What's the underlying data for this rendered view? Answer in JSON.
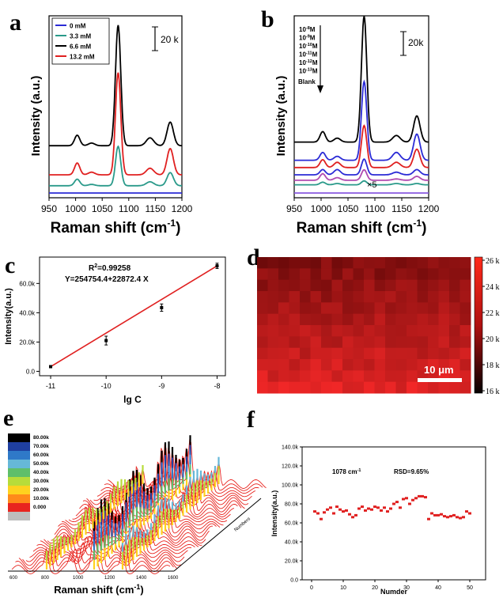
{
  "chart_data": [
    {
      "panel": "a",
      "type": "line",
      "x_ticks": [
        "950",
        "1000",
        "1050",
        "1100",
        "1150",
        "1200"
      ],
      "xlim": [
        950,
        1200
      ],
      "xlabel": "Raman shift (cm",
      "xlabel_sup": "-1",
      "xlabel_end": ")",
      "ylabel": "Intensity (a.u.)",
      "scale_bar": "20 k",
      "legend": {
        "position": "top-left",
        "entries": [
          {
            "label": "0 mM",
            "color": "#2b2bd6"
          },
          {
            "label": "3.3 mM",
            "color": "#2a9a8a"
          },
          {
            "label": "6.6 mM",
            "color": "#000000"
          },
          {
            "label": "13.2 mM",
            "color": "#e02020"
          }
        ]
      },
      "peaks_cm": [
        1003,
        1030,
        1080,
        1140,
        1178
      ],
      "series": [
        {
          "color": "#000000",
          "offset": 0.74,
          "amps": [
            0.08,
            0.02,
            0.92,
            0.06,
            0.18
          ]
        },
        {
          "color": "#e02020",
          "offset": 0.9,
          "amps": [
            0.09,
            0.02,
            0.78,
            0.05,
            0.2
          ]
        },
        {
          "color": "#2a9a8a",
          "offset": 0.96,
          "amps": [
            0.05,
            0.01,
            0.3,
            0.03,
            0.1
          ]
        },
        {
          "color": "#2b2bd6",
          "offset": 1.0,
          "amps": [
            0,
            0,
            0,
            0,
            0
          ]
        }
      ]
    },
    {
      "panel": "b",
      "type": "line",
      "x_ticks": [
        "950",
        "1000",
        "1050",
        "1100",
        "1150",
        "1200"
      ],
      "xlim": [
        950,
        1200
      ],
      "xlabel": "Raman shift (cm",
      "xlabel_sup": "-1",
      "xlabel_end": ")",
      "ylabel": "Intensity (a.u.)",
      "scale_bar": "20k",
      "multiplier": "×5",
      "concentrations": [
        {
          "base": "10",
          "exp": "-8",
          "unit": "M"
        },
        {
          "base": "10",
          "exp": "-9",
          "unit": "M"
        },
        {
          "base": "10",
          "exp": "-10",
          "unit": "M"
        },
        {
          "base": "10",
          "exp": "-11",
          "unit": "M"
        },
        {
          "base": "10",
          "exp": "-12",
          "unit": "M"
        },
        {
          "base": "10",
          "exp": "-13",
          "unit": "M"
        }
      ],
      "blank_label": "Blank",
      "peaks_cm": [
        1003,
        1030,
        1080,
        1140,
        1178
      ],
      "series": [
        {
          "color": "#000000",
          "offset": 0.72,
          "amps": [
            0.08,
            0.03,
            0.96,
            0.05,
            0.2
          ]
        },
        {
          "color": "#2b2bd6",
          "offset": 0.82,
          "amps": [
            0.06,
            0.03,
            0.6,
            0.06,
            0.2
          ]
        },
        {
          "color": "#e02020",
          "offset": 0.86,
          "amps": [
            0.06,
            0.04,
            0.32,
            0.04,
            0.14
          ]
        },
        {
          "color": "#2b2bd6",
          "offset": 0.9,
          "amps": [
            0.04,
            0.04,
            0.12,
            0.02,
            0.04
          ]
        },
        {
          "color": "#b04ab0",
          "offset": 0.93,
          "amps": [
            0.05,
            0.02,
            0.08,
            0.01,
            0.03
          ]
        },
        {
          "color": "#2a9a8a",
          "offset": 0.955,
          "amps": [
            0.02,
            0.01,
            0.03,
            0.01,
            0.01
          ]
        },
        {
          "color": "#8a5ae0",
          "offset": 1.0,
          "amps": [
            0,
            0,
            0,
            0,
            0
          ]
        }
      ]
    },
    {
      "panel": "c",
      "type": "scatter",
      "x": [
        -11,
        -10,
        -9,
        -8
      ],
      "y": [
        3200,
        21000,
        43500,
        72000
      ],
      "yerr": [
        600,
        3000,
        2500,
        1800
      ],
      "fit": {
        "label_r2": "R",
        "label_r2_sup": "2",
        "r2_value": "=0.99258",
        "equation": "Y=254754.4+22872.4 X",
        "color": "#e02020"
      },
      "x_ticks": [
        "-11",
        "-10",
        "-9",
        "-8"
      ],
      "y_ticks": [
        "0.0",
        "20.0k",
        "40.0k",
        "60.0k"
      ],
      "xlim": [
        -11.2,
        -7.85
      ],
      "ylim": [
        -3000,
        78000
      ],
      "xlabel": "lg C",
      "ylabel": "Intensity(a.u.)"
    },
    {
      "panel": "d",
      "type": "heatmap",
      "rows": 12,
      "cols": 20,
      "colorbar_ticks": [
        "26 k",
        "24 k",
        "22 k",
        "20 k",
        "18 k",
        "16 k"
      ],
      "scale_bar": "10 μm"
    },
    {
      "panel": "e",
      "type": "waterfall",
      "legend_values": [
        "80.00k",
        "70.00k",
        "60.00k",
        "50.00k",
        "40.00k",
        "30.00k",
        "20.00k",
        "10.00k",
        "0.000"
      ],
      "legend_colors": [
        "#000000",
        "#1f3f9f",
        "#2f79c8",
        "#66b8d8",
        "#5fbf6a",
        "#b8dc3a",
        "#ffd21f",
        "#ff8a1a",
        "#e8241f",
        "#bdbdbd"
      ],
      "x_ticks": [
        "600",
        "800",
        "1000",
        "1200",
        "1400",
        "1600"
      ],
      "xlabel": "Raman shift (cm",
      "xlabel_sup": "-1",
      "xlabel_end": ")",
      "depth_label": "Numbers"
    },
    {
      "panel": "f",
      "type": "scatter",
      "annotation_peak": "1078 cm",
      "annotation_peak_sup": "-1",
      "annotation_rsd": "RSD=9.65%",
      "x": [
        1,
        2,
        3,
        4,
        5,
        6,
        7,
        8,
        9,
        10,
        11,
        12,
        13,
        14,
        15,
        16,
        17,
        18,
        19,
        20,
        21,
        22,
        23,
        24,
        25,
        26,
        27,
        28,
        29,
        30,
        31,
        32,
        33,
        34,
        35,
        36,
        37,
        38,
        39,
        40,
        41,
        42,
        43,
        44,
        45,
        46,
        47,
        48,
        49,
        50
      ],
      "y": [
        72000,
        70000,
        64000,
        71000,
        74000,
        76000,
        70000,
        77000,
        74000,
        72000,
        73000,
        69000,
        66000,
        68000,
        75000,
        77000,
        73000,
        75000,
        74000,
        77000,
        76000,
        73000,
        76000,
        72000,
        75000,
        80000,
        82000,
        76000,
        85000,
        86000,
        80000,
        84000,
        86000,
        88000,
        88000,
        87000,
        64000,
        70000,
        68000,
        68000,
        69000,
        67000,
        66000,
        67000,
        68000,
        66000,
        65000,
        66000,
        72000,
        70000
      ],
      "x_ticks": [
        "0",
        "10",
        "20",
        "30",
        "40",
        "50"
      ],
      "y_ticks": [
        "0.0",
        "20.0k",
        "40.0k",
        "60.0k",
        "80.0k",
        "100.0k",
        "120.0k",
        "140.0k"
      ],
      "xlim": [
        -3,
        55
      ],
      "ylim": [
        0,
        140000
      ],
      "xlabel": "Numder",
      "ylabel": "Intensity(a.u.)",
      "color": "#e02020"
    }
  ],
  "panel_labels": {
    "a": "a",
    "b": "b",
    "c": "c",
    "d": "d",
    "e": "e",
    "f": "f"
  }
}
